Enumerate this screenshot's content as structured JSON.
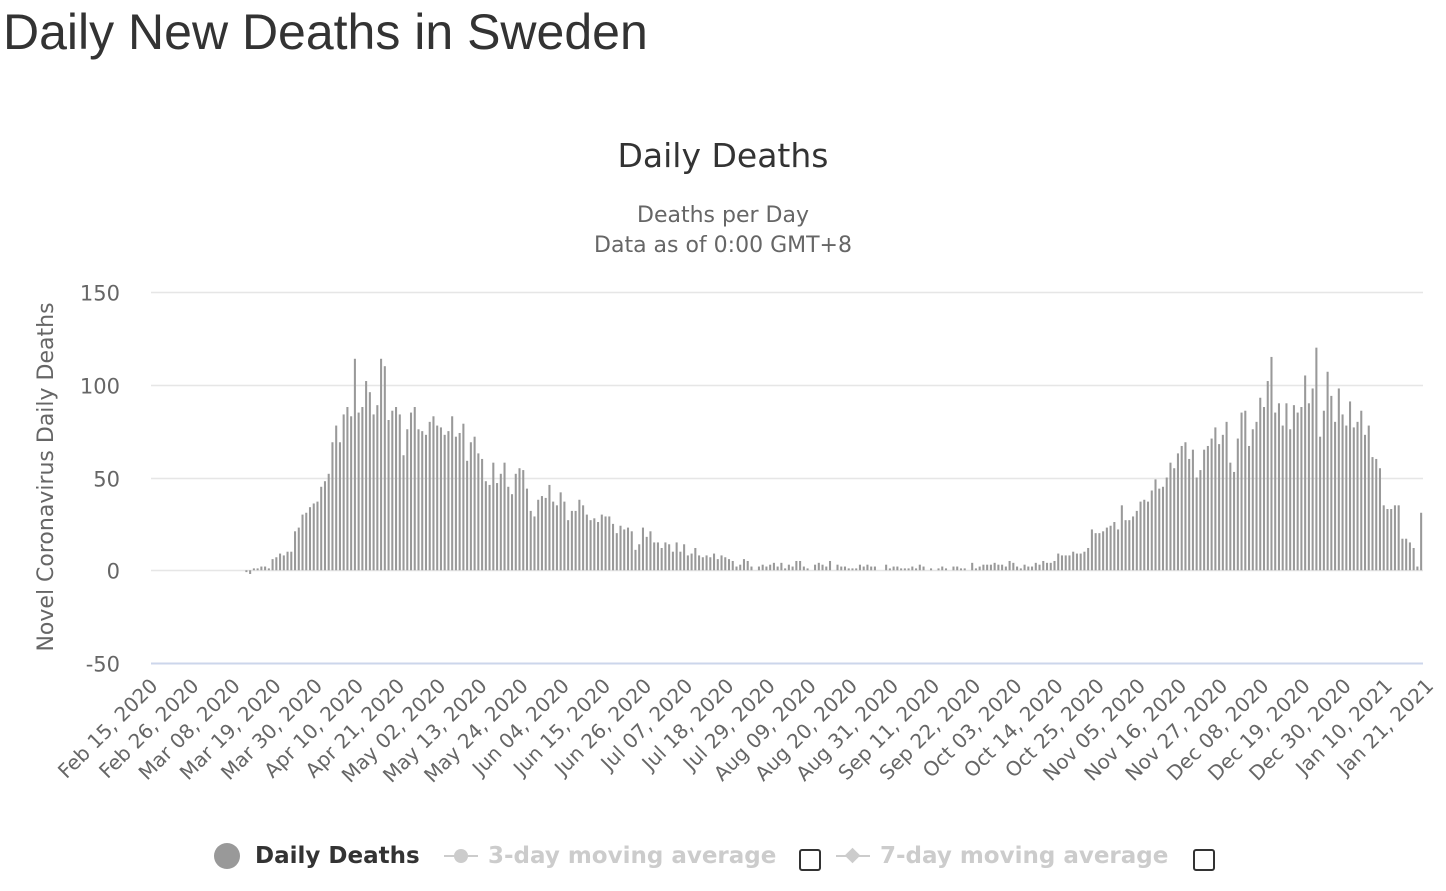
{
  "page": {
    "title": "Daily New Deaths in Sweden"
  },
  "chart_data": {
    "type": "bar",
    "title": "Daily Deaths",
    "subtitle_line1": "Deaths per Day",
    "subtitle_line2": "Data as of 0:00 GMT+8",
    "xlabel": "",
    "ylabel": "Novel Coronavirus Daily Deaths",
    "ylim": [
      -50,
      150
    ],
    "yticks": [
      -50,
      0,
      50,
      100,
      150
    ],
    "grid": true,
    "start_date": "2020-02-15",
    "x_tick_labels": [
      "Feb 15, 2020",
      "Feb 26, 2020",
      "Mar 08, 2020",
      "Mar 19, 2020",
      "Mar 30, 2020",
      "Apr 10, 2020",
      "Apr 21, 2020",
      "May 02, 2020",
      "May 13, 2020",
      "May 24, 2020",
      "Jun 04, 2020",
      "Jun 15, 2020",
      "Jun 26, 2020",
      "Jul 07, 2020",
      "Jul 18, 2020",
      "Jul 29, 2020",
      "Aug 09, 2020",
      "Aug 20, 2020",
      "Aug 31, 2020",
      "Sep 11, 2020",
      "Sep 22, 2020",
      "Oct 03, 2020",
      "Oct 14, 2020",
      "Oct 25, 2020",
      "Nov 05, 2020",
      "Nov 16, 2020",
      "Nov 27, 2020",
      "Dec 08, 2020",
      "Dec 19, 2020",
      "Dec 30, 2020",
      "Jan 10, 2021",
      "Jan 21, 2021"
    ],
    "series": [
      {
        "name": "Daily Deaths",
        "color": "#999999",
        "values": [
          0,
          0,
          0,
          0,
          0,
          0,
          0,
          0,
          0,
          0,
          0,
          0,
          0,
          0,
          0,
          0,
          0,
          0,
          0,
          0,
          0,
          0,
          0,
          0,
          0,
          -1,
          -2,
          1,
          1,
          2,
          2,
          1,
          6,
          7,
          9,
          8,
          10,
          10,
          21,
          23,
          30,
          31,
          34,
          36,
          37,
          45,
          48,
          52,
          69,
          78,
          69,
          84,
          88,
          83,
          114,
          85,
          88,
          102,
          96,
          84,
          89,
          114,
          110,
          81,
          86,
          88,
          84,
          62,
          76,
          85,
          88,
          76,
          75,
          73,
          80,
          83,
          78,
          77,
          73,
          75,
          83,
          72,
          74,
          79,
          59,
          69,
          72,
          63,
          60,
          48,
          46,
          58,
          47,
          52,
          58,
          45,
          41,
          52,
          55,
          54,
          44,
          32,
          29,
          38,
          40,
          39,
          46,
          37,
          35,
          42,
          37,
          27,
          32,
          32,
          38,
          35,
          30,
          27,
          28,
          26,
          30,
          29,
          29,
          25,
          20,
          24,
          22,
          23,
          21,
          11,
          14,
          23,
          18,
          21,
          15,
          15,
          12,
          15,
          14,
          10,
          15,
          10,
          14,
          8,
          9,
          12,
          8,
          7,
          8,
          7,
          9,
          6,
          8,
          7,
          6,
          5,
          2,
          3,
          6,
          5,
          2,
          0,
          2,
          3,
          2,
          3,
          4,
          2,
          4,
          1,
          3,
          2,
          5,
          5,
          2,
          1,
          0,
          3,
          4,
          3,
          2,
          5,
          0,
          3,
          2,
          2,
          1,
          1,
          1,
          3,
          2,
          3,
          2,
          2,
          0,
          0,
          3,
          1,
          2,
          2,
          1,
          1,
          1,
          2,
          1,
          3,
          2,
          0,
          1,
          0,
          1,
          2,
          1,
          0,
          2,
          2,
          1,
          1,
          0,
          4,
          1,
          2,
          3,
          3,
          3,
          4,
          3,
          3,
          2,
          5,
          4,
          2,
          1,
          3,
          2,
          2,
          4,
          3,
          5,
          4,
          4,
          5,
          9,
          8,
          8,
          8,
          10,
          9,
          9,
          10,
          12,
          22,
          20,
          20,
          21,
          23,
          24,
          26,
          22,
          35,
          27,
          27,
          29,
          32,
          37,
          38,
          37,
          43,
          49,
          44,
          45,
          50,
          58,
          55,
          63,
          67,
          69,
          60,
          65,
          50,
          54,
          65,
          67,
          71,
          77,
          68,
          73,
          80,
          58,
          53,
          71,
          85,
          86,
          67,
          76,
          80,
          93,
          88,
          102,
          115,
          85,
          90,
          78,
          90,
          76,
          89,
          85,
          88,
          105,
          90,
          98,
          120,
          72,
          86,
          107,
          94,
          80,
          98,
          84,
          78,
          91,
          77,
          80,
          86,
          73,
          78,
          61,
          60,
          55,
          35,
          33,
          33,
          35,
          35,
          17,
          17,
          15,
          12,
          2,
          31
        ]
      },
      {
        "name": "3-day moving average",
        "color": "#cccccc",
        "values": []
      },
      {
        "name": "7-day moving average",
        "color": "#cccccc",
        "values": []
      }
    ]
  }
}
